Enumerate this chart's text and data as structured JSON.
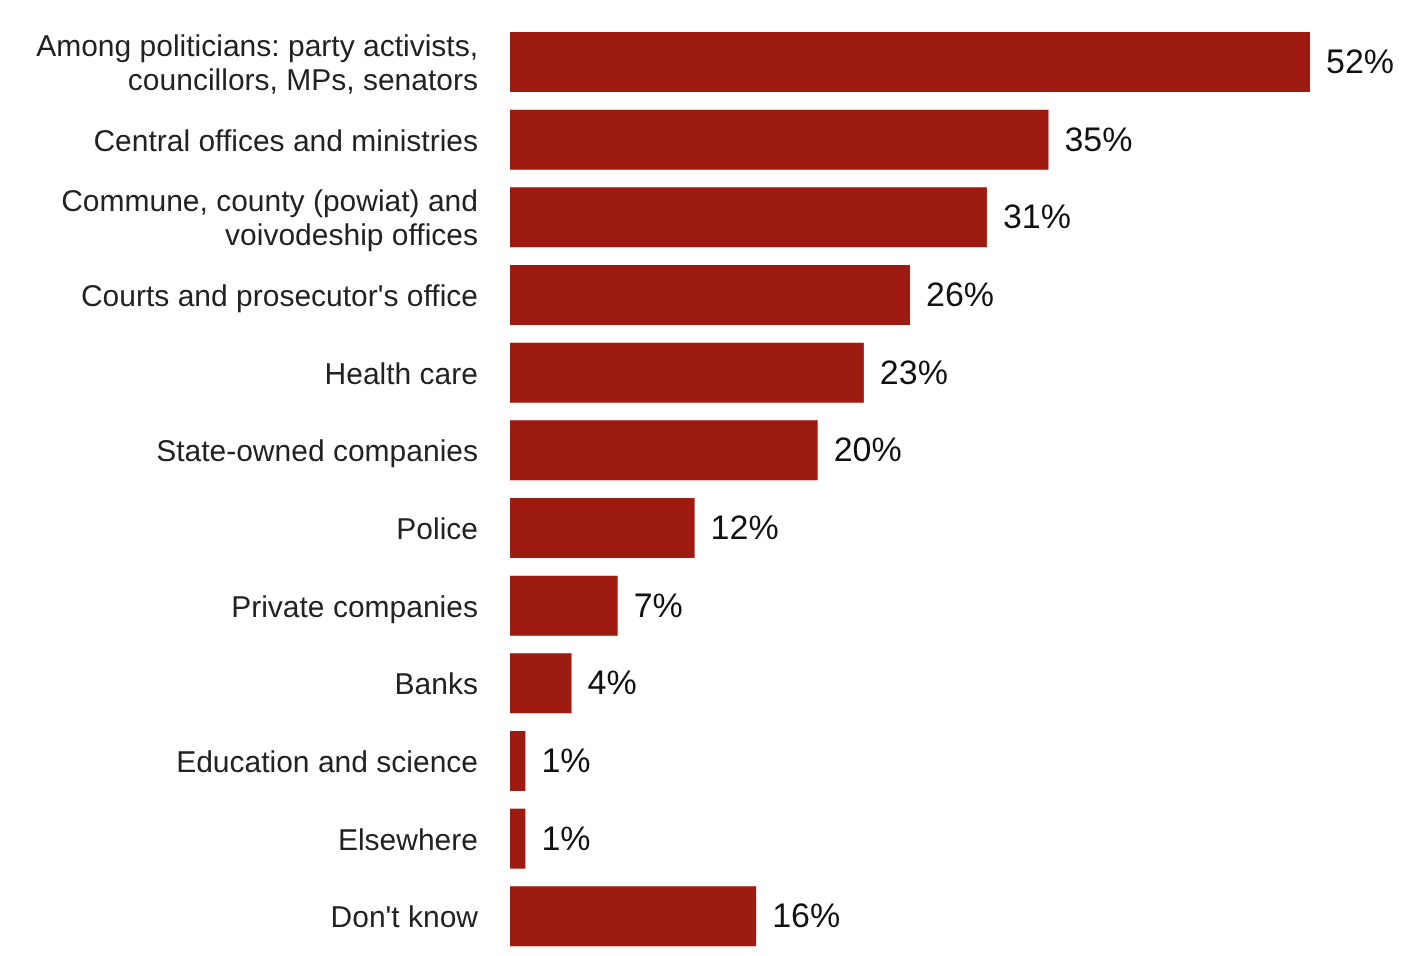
{
  "chart_data": {
    "type": "bar",
    "orientation": "horizontal",
    "categories": [
      "Among politicians: party activists, councillors, MPs, senators",
      "Central offices and ministries",
      "Commune, county (powiat) and voivodeship offices",
      "Courts and prosecutor's office",
      "Health care",
      "State-owned companies",
      "Police",
      "Private companies",
      "Banks",
      "Education and science",
      "Elsewhere",
      "Don't know"
    ],
    "values": [
      52,
      35,
      31,
      26,
      23,
      20,
      12,
      7,
      4,
      1,
      1,
      16
    ],
    "value_labels": [
      "52%",
      "35%",
      "31%",
      "26%",
      "23%",
      "20%",
      "12%",
      "7%",
      "4%",
      "1%",
      "1%",
      "16%"
    ],
    "color": "#9e1b12",
    "grid": false,
    "legend": false
  }
}
